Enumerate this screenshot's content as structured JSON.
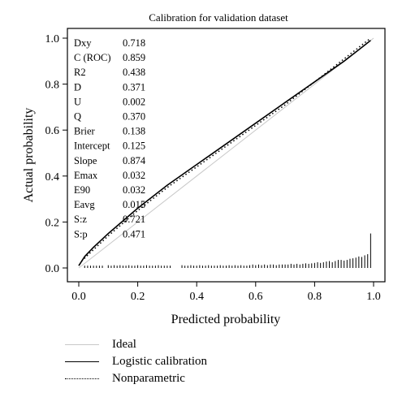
{
  "chart_data": {
    "type": "line",
    "title": "Calibration for validation dataset",
    "xlabel": "Predicted probability",
    "ylabel": "Actual probability",
    "xlim": [
      0,
      1
    ],
    "ylim": [
      0,
      1
    ],
    "xticks": [
      "0.0",
      "0.2",
      "0.4",
      "0.6",
      "0.8",
      "1.0"
    ],
    "yticks": [
      "0.0",
      "0.2",
      "0.4",
      "0.6",
      "0.8",
      "1.0"
    ],
    "grid": false,
    "legend_position": "bottom",
    "stats": [
      {
        "label": "Dxy",
        "value": "0.718"
      },
      {
        "label": "C (ROC)",
        "value": "0.859"
      },
      {
        "label": "R2",
        "value": "0.438"
      },
      {
        "label": "D",
        "value": "0.371"
      },
      {
        "label": "U",
        "value": "0.002"
      },
      {
        "label": "Q",
        "value": "0.370"
      },
      {
        "label": "Brier",
        "value": "0.138"
      },
      {
        "label": "Intercept",
        "value": "0.125"
      },
      {
        "label": "Slope",
        "value": "0.874"
      },
      {
        "label": "Emax",
        "value": "0.032"
      },
      {
        "label": "E90",
        "value": "0.032"
      },
      {
        "label": "Eavg",
        "value": "0.015"
      },
      {
        "label": "S:z",
        "value": "0.721"
      },
      {
        "label": "S:p",
        "value": "0.471"
      }
    ],
    "series": [
      {
        "name": "Ideal",
        "style": "solid",
        "color": "#c8c8c8",
        "x": [
          0,
          1
        ],
        "y": [
          0,
          1
        ]
      },
      {
        "name": "Logistic calibration",
        "style": "solid",
        "color": "#000000",
        "x": [
          0.0,
          0.02,
          0.05,
          0.1,
          0.2,
          0.3,
          0.4,
          0.5,
          0.6,
          0.7,
          0.8,
          0.9,
          0.95,
          0.99
        ],
        "y": [
          0.01,
          0.05,
          0.09,
          0.15,
          0.26,
          0.36,
          0.45,
          0.54,
          0.63,
          0.72,
          0.81,
          0.9,
          0.95,
          0.99
        ]
      },
      {
        "name": "Nonparametric",
        "style": "dotted",
        "color": "#000000",
        "x": [
          0.01,
          0.05,
          0.1,
          0.2,
          0.3,
          0.4,
          0.5,
          0.6,
          0.7,
          0.8,
          0.9,
          0.95,
          0.99
        ],
        "y": [
          0.03,
          0.08,
          0.14,
          0.25,
          0.35,
          0.44,
          0.53,
          0.62,
          0.71,
          0.81,
          0.91,
          0.96,
          1.0
        ]
      }
    ],
    "rug": {
      "x": [
        0.02,
        0.03,
        0.04,
        0.05,
        0.06,
        0.07,
        0.08,
        0.1,
        0.11,
        0.12,
        0.13,
        0.14,
        0.15,
        0.16,
        0.17,
        0.18,
        0.19,
        0.2,
        0.21,
        0.22,
        0.23,
        0.24,
        0.25,
        0.26,
        0.27,
        0.28,
        0.29,
        0.3,
        0.31,
        0.35,
        0.36,
        0.37,
        0.38,
        0.39,
        0.4,
        0.41,
        0.42,
        0.43,
        0.44,
        0.45,
        0.46,
        0.47,
        0.48,
        0.49,
        0.5,
        0.51,
        0.52,
        0.53,
        0.54,
        0.55,
        0.56,
        0.57,
        0.58,
        0.59,
        0.6,
        0.61,
        0.62,
        0.63,
        0.64,
        0.65,
        0.66,
        0.67,
        0.68,
        0.69,
        0.7,
        0.71,
        0.72,
        0.73,
        0.74,
        0.75,
        0.76,
        0.77,
        0.78,
        0.79,
        0.8,
        0.81,
        0.82,
        0.83,
        0.84,
        0.85,
        0.86,
        0.87,
        0.88,
        0.89,
        0.9,
        0.91,
        0.92,
        0.93,
        0.94,
        0.95,
        0.96,
        0.97,
        0.98,
        0.99
      ],
      "y": [
        0.01,
        0.01,
        0.01,
        0.01,
        0.01,
        0.01,
        0.01,
        0.012,
        0.01,
        0.012,
        0.01,
        0.012,
        0.01,
        0.01,
        0.012,
        0.01,
        0.01,
        0.012,
        0.01,
        0.01,
        0.012,
        0.01,
        0.01,
        0.01,
        0.012,
        0.01,
        0.01,
        0.01,
        0.01,
        0.012,
        0.01,
        0.01,
        0.012,
        0.01,
        0.01,
        0.012,
        0.01,
        0.01,
        0.012,
        0.01,
        0.01,
        0.01,
        0.012,
        0.01,
        0.01,
        0.012,
        0.01,
        0.012,
        0.01,
        0.012,
        0.01,
        0.01,
        0.012,
        0.015,
        0.012,
        0.015,
        0.012,
        0.015,
        0.012,
        0.015,
        0.015,
        0.012,
        0.015,
        0.015,
        0.015,
        0.015,
        0.018,
        0.015,
        0.018,
        0.015,
        0.018,
        0.02,
        0.018,
        0.02,
        0.022,
        0.025,
        0.022,
        0.025,
        0.028,
        0.03,
        0.025,
        0.03,
        0.035,
        0.035,
        0.032,
        0.035,
        0.04,
        0.042,
        0.045,
        0.05,
        0.048,
        0.055,
        0.06,
        0.15
      ]
    }
  }
}
